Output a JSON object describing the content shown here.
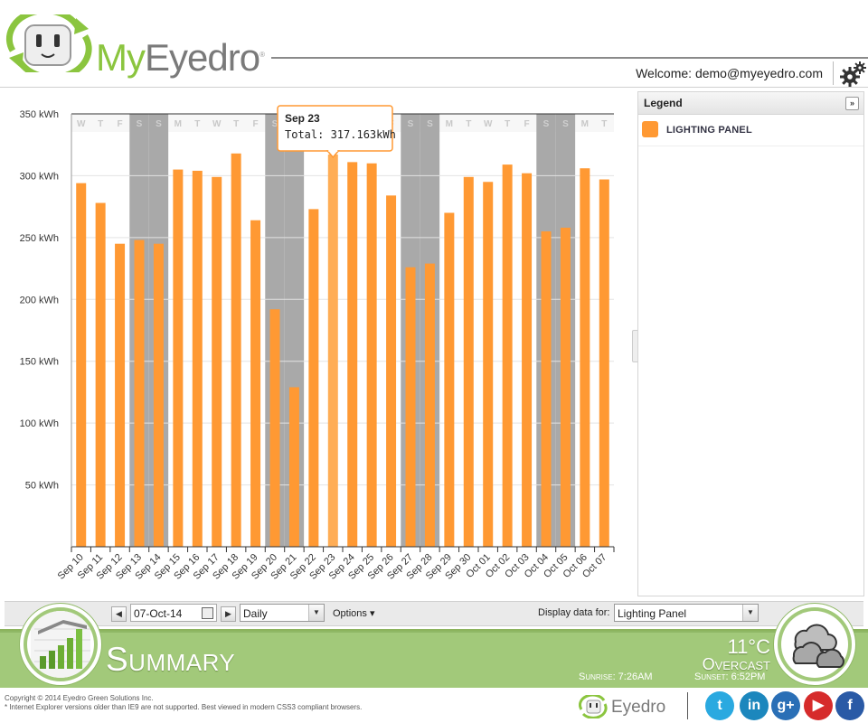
{
  "app": {
    "logo_prefix": "My",
    "logo_suffix": "Eyedro",
    "logo_mark": "®",
    "welcome": "Welcome: demo@myeyedro.com",
    "settings_icon": "gear-icon"
  },
  "chart_data": {
    "type": "bar",
    "yunit": "kWh",
    "ylim": [
      0,
      350
    ],
    "yticks": [
      "50 kWh",
      "100 kWh",
      "150 kWh",
      "200 kWh",
      "250 kWh",
      "300 kWh",
      "350 kWh"
    ],
    "ytick_values": [
      50,
      100,
      150,
      200,
      250,
      300,
      350
    ],
    "categories": [
      "Sep 10",
      "Sep 11",
      "Sep 12",
      "Sep 13",
      "Sep 14",
      "Sep 15",
      "Sep 16",
      "Sep 17",
      "Sep 18",
      "Sep 19",
      "Sep 20",
      "Sep 21",
      "Sep 22",
      "Sep 23",
      "Sep 24",
      "Sep 25",
      "Sep 26",
      "Sep 27",
      "Sep 28",
      "Sep 29",
      "Sep 30",
      "Oct 01",
      "Oct 02",
      "Oct 03",
      "Oct 04",
      "Oct 05",
      "Oct 06",
      "Oct 07"
    ],
    "weekdays": [
      "W",
      "T",
      "F",
      "S",
      "S",
      "M",
      "T",
      "W",
      "T",
      "F",
      "S",
      "S",
      "M",
      "T",
      "W",
      "T",
      "F",
      "S",
      "S",
      "M",
      "T",
      "W",
      "T",
      "F",
      "S",
      "S",
      "M",
      "T"
    ],
    "weekend_shaded": [
      false,
      false,
      false,
      true,
      true,
      false,
      false,
      false,
      false,
      false,
      true,
      true,
      false,
      false,
      false,
      false,
      false,
      true,
      true,
      false,
      false,
      false,
      false,
      false,
      true,
      true,
      false,
      false
    ],
    "series": [
      {
        "name": "LIGHTING PANEL",
        "color": "#ff9933",
        "values": [
          294,
          278,
          245,
          248,
          245,
          305,
          304,
          299,
          318,
          264,
          192,
          129,
          273,
          317.163,
          311,
          310,
          284,
          226,
          229,
          270,
          299,
          295,
          309,
          302,
          255,
          258,
          306,
          297
        ]
      }
    ],
    "highlight_index": 13,
    "tooltip": {
      "title": "Sep 23",
      "text": "Total: 317.163kWh"
    },
    "grid": true
  },
  "legend": {
    "title": "Legend",
    "collapse_icon": "double-chevron-right-icon",
    "items": [
      {
        "label": "LIGHTING PANEL",
        "color": "#ff9933"
      }
    ]
  },
  "toolbar": {
    "prev_icon": "arrow-left-icon",
    "next_icon": "arrow-right-icon",
    "date": "07-Oct-14",
    "calendar_icon": "calendar-icon",
    "period": "Daily",
    "options": "Options ▾",
    "display_label": "Display data for:",
    "display_value": "Lighting Panel"
  },
  "summary": {
    "title": "Summary",
    "temperature": "11°C",
    "condition": "Overcast",
    "sunrise": "Sunrise: 7:26AM",
    "sunset": "Sunset: 6:52PM"
  },
  "footer": {
    "copyright": "Copyright © 2014 Eyedro Green Solutions Inc.",
    "note": "* Internet Explorer versions older than IE9 are not supported. Best viewed in modern CSS3 compliant browsers.",
    "brand": "Eyedro",
    "social": [
      {
        "name": "twitter",
        "glyph": "t",
        "color": "#2aa9e0"
      },
      {
        "name": "linkedin",
        "glyph": "in",
        "color": "#1c87bd"
      },
      {
        "name": "googleplus",
        "glyph": "g+",
        "color": "#2a6fb6"
      },
      {
        "name": "youtube",
        "glyph": "▶",
        "color": "#d62b2b"
      },
      {
        "name": "facebook",
        "glyph": "f",
        "color": "#2a5aa6"
      }
    ]
  }
}
